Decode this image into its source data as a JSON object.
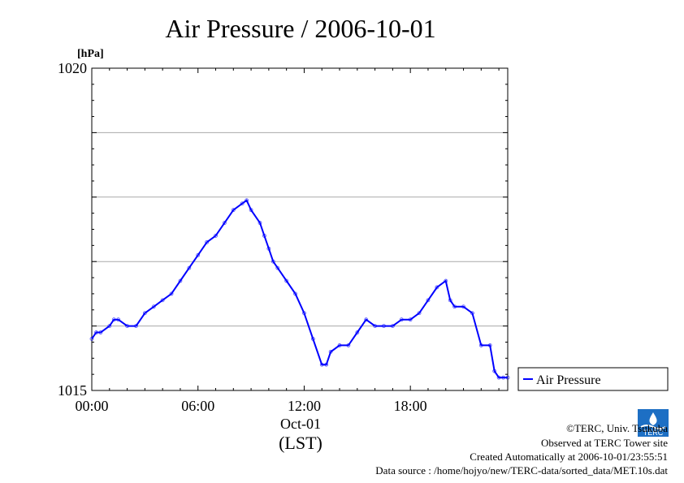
{
  "chart_data": {
    "type": "line",
    "title": "Air Pressure / 2006-10-01",
    "ylabel": "[hPa]",
    "xlabel_date": "Oct-01",
    "xlabel_zone": "(LST)",
    "ylim": [
      1015,
      1020
    ],
    "yticks": [
      {
        "value": 1020,
        "label": "1020"
      },
      {
        "value": 1015,
        "label": "1015"
      }
    ],
    "xlim": [
      0,
      23.5
    ],
    "xticks": [
      {
        "value": 0,
        "label": "00:00"
      },
      {
        "value": 6,
        "label": "06:00"
      },
      {
        "value": 12,
        "label": "12:00"
      },
      {
        "value": 18,
        "label": "18:00"
      }
    ],
    "grid": true,
    "legend_position": "right",
    "series": [
      {
        "name": "Air Pressure",
        "color": "#0000ff",
        "x": [
          0,
          0.25,
          0.5,
          1.0,
          1.25,
          1.5,
          2.0,
          2.5,
          3.0,
          3.5,
          4.0,
          4.5,
          5.0,
          5.5,
          6.0,
          6.5,
          7.0,
          7.5,
          8.0,
          8.5,
          8.75,
          9.0,
          9.5,
          9.75,
          10.0,
          10.25,
          10.5,
          11.0,
          11.5,
          12.0,
          12.5,
          13.0,
          13.25,
          13.5,
          14.0,
          14.5,
          15.0,
          15.5,
          16.0,
          16.5,
          17.0,
          17.5,
          18.0,
          18.5,
          19.0,
          19.5,
          20.0,
          20.25,
          20.5,
          21.0,
          21.5,
          22.0,
          22.5,
          22.75,
          23.0,
          23.25,
          23.5
        ],
        "y": [
          1015.8,
          1015.9,
          1015.9,
          1016.0,
          1016.1,
          1016.1,
          1016.0,
          1016.0,
          1016.2,
          1016.3,
          1016.4,
          1016.5,
          1016.7,
          1016.9,
          1017.1,
          1017.3,
          1017.4,
          1017.6,
          1017.8,
          1017.9,
          1017.95,
          1017.8,
          1017.6,
          1017.4,
          1017.2,
          1017.0,
          1016.9,
          1016.7,
          1016.5,
          1016.2,
          1015.8,
          1015.4,
          1015.4,
          1015.6,
          1015.7,
          1015.7,
          1015.9,
          1016.1,
          1016.0,
          1016.0,
          1016.0,
          1016.1,
          1016.1,
          1016.2,
          1016.4,
          1016.6,
          1016.7,
          1016.4,
          1016.3,
          1016.3,
          1016.2,
          1015.7,
          1015.7,
          1015.3,
          1015.2,
          1015.2,
          1015.2
        ]
      }
    ]
  },
  "footer": {
    "credit": "©TERC, Univ. Tsukuba",
    "site": "Observed at TERC Tower site",
    "created": "Created Automatically at 2006-10-01/23:55:51",
    "source": "Data source : /home/hojyo/new/TERC-data/sorted_data/MET.10s.dat"
  },
  "logo": {
    "text": "TERC",
    "color": "#1d6fc4"
  }
}
